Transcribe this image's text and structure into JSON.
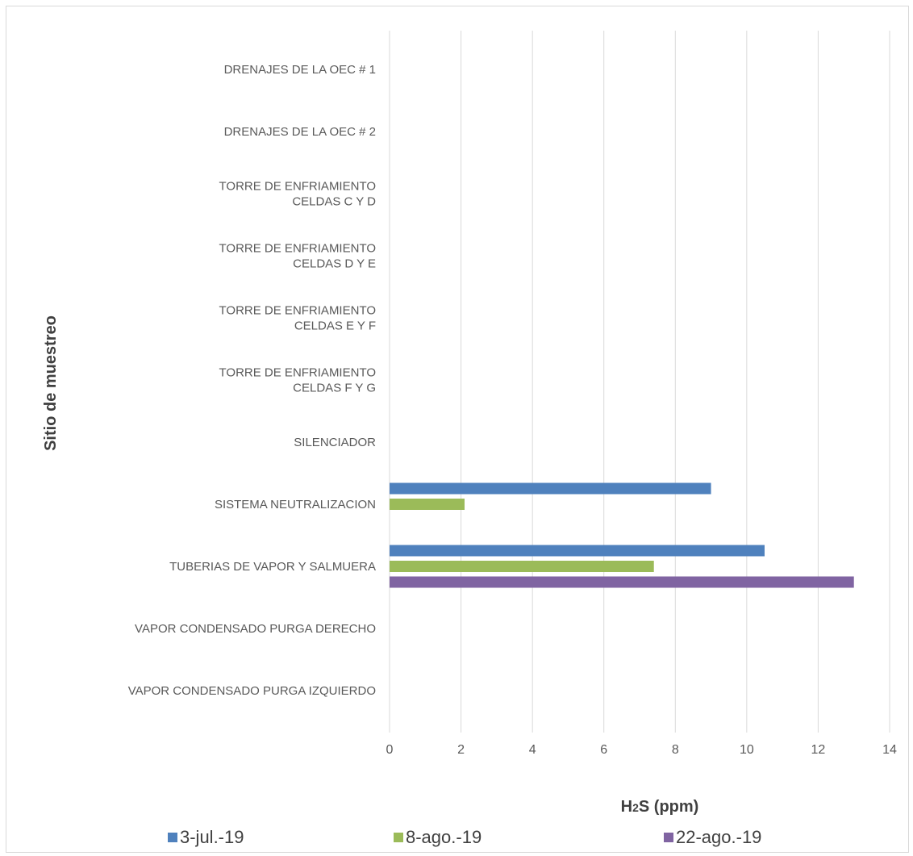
{
  "chart_data": {
    "type": "bar",
    "orientation": "horizontal",
    "categories": [
      [
        "DRENAJES DE LA OEC # 1"
      ],
      [
        "DRENAJES DE LA OEC # 2"
      ],
      [
        "TORRE DE ENFRIAMIENTO",
        "CELDAS C Y D"
      ],
      [
        "TORRE DE ENFRIAMIENTO",
        "CELDAS D Y E"
      ],
      [
        "TORRE DE ENFRIAMIENTO",
        "CELDAS E Y F"
      ],
      [
        "TORRE DE ENFRIAMIENTO",
        "CELDAS F Y G"
      ],
      [
        "SILENCIADOR"
      ],
      [
        "SISTEMA NEUTRALIZACION"
      ],
      [
        "TUBERIAS DE VAPOR Y SALMUERA"
      ],
      [
        "VAPOR CONDENSADO PURGA DERECHO"
      ],
      [
        "VAPOR CONDENSADO PURGA IZQUIERDO"
      ]
    ],
    "series": [
      {
        "name": "3-jul.-19",
        "color": "#4f81bd",
        "values": [
          null,
          null,
          null,
          null,
          null,
          null,
          null,
          9.0,
          10.5,
          null,
          null
        ]
      },
      {
        "name": "8-ago.-19",
        "color": "#9bbb59",
        "values": [
          null,
          null,
          null,
          null,
          null,
          null,
          null,
          2.1,
          7.4,
          null,
          null
        ]
      },
      {
        "name": "22-ago.-19",
        "color": "#8064a2",
        "values": [
          null,
          null,
          null,
          null,
          null,
          null,
          null,
          null,
          13.0,
          null,
          null
        ]
      }
    ],
    "xlabel": "H2S (ppm)",
    "ylabel": "Sitio de muestreo",
    "xlim": [
      0,
      14
    ],
    "xticks": [
      "0",
      "2",
      "4",
      "6",
      "8",
      "10",
      "12",
      "14"
    ],
    "grid": "vertical",
    "legend_position": "bottom"
  }
}
